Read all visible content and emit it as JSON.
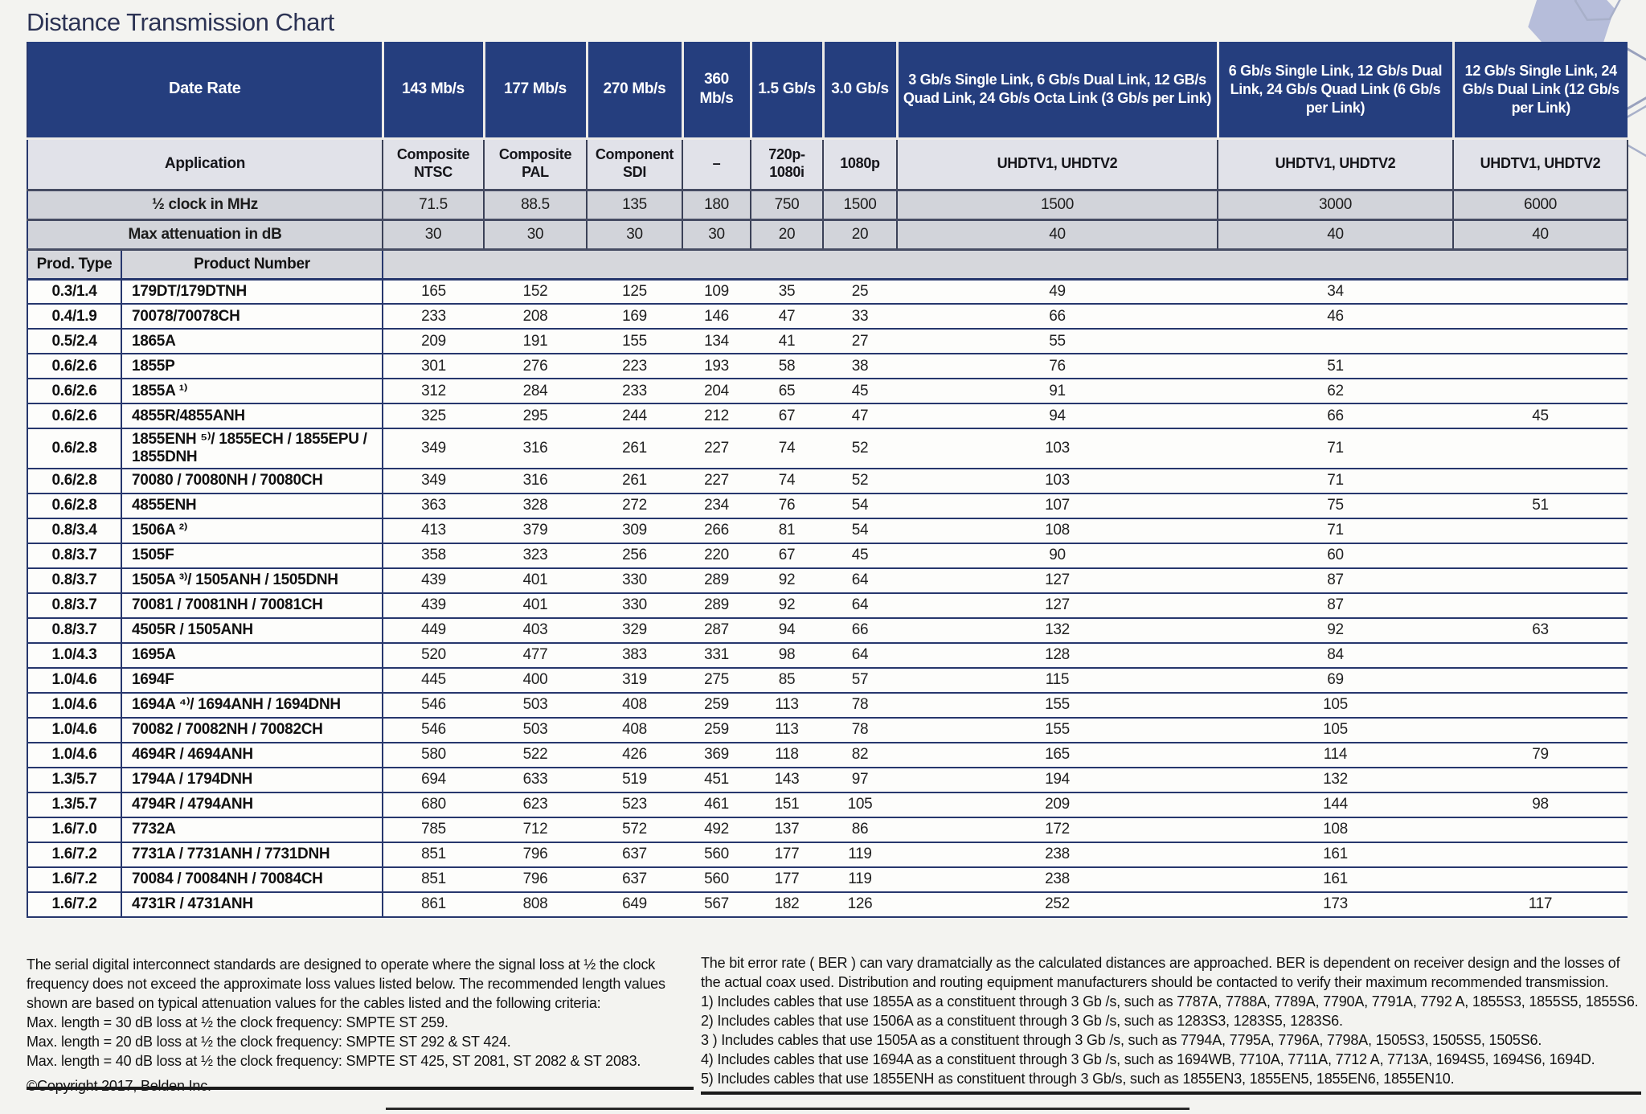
{
  "title": "Distance Transmission Chart",
  "copyright": "©Copyright 2017, Belden Inc.",
  "colors": {
    "header_blue": "#253e7e",
    "light_row": "#d2d4da",
    "hexagon_fill": "#b6bdda"
  },
  "table": {
    "header": {
      "date_rate_label": "Date Rate",
      "application_label": "Application",
      "clock_label": "½ clock in MHz",
      "attenuation_label": "Max attenuation in dB",
      "prod_type_label": "Prod. Type",
      "product_number_label": "Product Number",
      "rate_columns": [
        {
          "rate": "143 Mb/s",
          "application": "Composite NTSC",
          "clock": "71.5",
          "attenuation": "30"
        },
        {
          "rate": "177 Mb/s",
          "application": "Composite PAL",
          "clock": "88.5",
          "attenuation": "30"
        },
        {
          "rate": "270 Mb/s",
          "application": "Component SDI",
          "clock": "135",
          "attenuation": "30"
        },
        {
          "rate": "360 Mb/s",
          "application": "–",
          "clock": "180",
          "attenuation": "30"
        },
        {
          "rate": "1.5 Gb/s",
          "application": "720p-1080i",
          "clock": "750",
          "attenuation": "20"
        },
        {
          "rate": "3.0 Gb/s",
          "application": "1080p",
          "clock": "1500",
          "attenuation": "20"
        },
        {
          "rate": "3 Gb/s Single Link, 6 Gb/s Dual Link, 12 GB/s Quad Link, 24 Gb/s Octa Link (3 Gb/s per Link)",
          "application": "UHDTV1, UHDTV2",
          "clock": "1500",
          "attenuation": "40"
        },
        {
          "rate": "6 Gb/s Single Link, 12 Gb/s Dual Link, 24 Gb/s Quad Link (6 Gb/s per Link)",
          "application": "UHDTV1, UHDTV2",
          "clock": "3000",
          "attenuation": "40"
        },
        {
          "rate": "12 Gb/s Single Link, 24 Gb/s Dual Link (12 Gb/s per Link)",
          "application": "UHDTV1, UHDTV2",
          "clock": "6000",
          "attenuation": "40"
        }
      ]
    },
    "rows": [
      {
        "type": "0.3/1.4",
        "product": "179DT/179DTNH",
        "values": [
          "165",
          "152",
          "125",
          "109",
          "35",
          "25",
          "49",
          "34",
          ""
        ]
      },
      {
        "type": "0.4/1.9",
        "product": "70078/70078CH",
        "values": [
          "233",
          "208",
          "169",
          "146",
          "47",
          "33",
          "66",
          "46",
          ""
        ]
      },
      {
        "type": "0.5/2.4",
        "product": "1865A",
        "values": [
          "209",
          "191",
          "155",
          "134",
          "41",
          "27",
          "55",
          "",
          ""
        ]
      },
      {
        "type": "0.6/2.6",
        "product": "1855P",
        "values": [
          "301",
          "276",
          "223",
          "193",
          "58",
          "38",
          "76",
          "51",
          ""
        ]
      },
      {
        "type": "0.6/2.6",
        "product": "1855A ¹⁾",
        "values": [
          "312",
          "284",
          "233",
          "204",
          "65",
          "45",
          "91",
          "62",
          ""
        ]
      },
      {
        "type": "0.6/2.6",
        "product": "4855R/4855ANH",
        "values": [
          "325",
          "295",
          "244",
          "212",
          "67",
          "47",
          "94",
          "66",
          "45"
        ]
      },
      {
        "type": "0.6/2.8",
        "product": "1855ENH ⁵⁾/ 1855ECH / 1855EPU / 1855DNH",
        "values": [
          "349",
          "316",
          "261",
          "227",
          "74",
          "52",
          "103",
          "71",
          ""
        ]
      },
      {
        "type": "0.6/2.8",
        "product": "70080 / 70080NH / 70080CH",
        "values": [
          "349",
          "316",
          "261",
          "227",
          "74",
          "52",
          "103",
          "71",
          ""
        ]
      },
      {
        "type": "0.6/2.8",
        "product": "4855ENH",
        "values": [
          "363",
          "328",
          "272",
          "234",
          "76",
          "54",
          "107",
          "75",
          "51"
        ]
      },
      {
        "type": "0.8/3.4",
        "product": "1506A ²⁾",
        "values": [
          "413",
          "379",
          "309",
          "266",
          "81",
          "54",
          "108",
          "71",
          ""
        ]
      },
      {
        "type": "0.8/3.7",
        "product": "1505F",
        "values": [
          "358",
          "323",
          "256",
          "220",
          "67",
          "45",
          "90",
          "60",
          ""
        ]
      },
      {
        "type": "0.8/3.7",
        "product": "1505A ³⁾/ 1505ANH / 1505DNH",
        "values": [
          "439",
          "401",
          "330",
          "289",
          "92",
          "64",
          "127",
          "87",
          ""
        ]
      },
      {
        "type": "0.8/3.7",
        "product": "70081 / 70081NH / 70081CH",
        "values": [
          "439",
          "401",
          "330",
          "289",
          "92",
          "64",
          "127",
          "87",
          ""
        ]
      },
      {
        "type": "0.8/3.7",
        "product": "4505R / 1505ANH",
        "values": [
          "449",
          "403",
          "329",
          "287",
          "94",
          "66",
          "132",
          "92",
          "63"
        ]
      },
      {
        "type": "1.0/4.3",
        "product": "1695A",
        "values": [
          "520",
          "477",
          "383",
          "331",
          "98",
          "64",
          "128",
          "84",
          ""
        ]
      },
      {
        "type": "1.0/4.6",
        "product": "1694F",
        "values": [
          "445",
          "400",
          "319",
          "275",
          "85",
          "57",
          "115",
          "69",
          ""
        ]
      },
      {
        "type": "1.0/4.6",
        "product": "1694A ⁴⁾/ 1694ANH / 1694DNH",
        "values": [
          "546",
          "503",
          "408",
          "259",
          "113",
          "78",
          "155",
          "105",
          ""
        ]
      },
      {
        "type": "1.0/4.6",
        "product": "70082 / 70082NH / 70082CH",
        "values": [
          "546",
          "503",
          "408",
          "259",
          "113",
          "78",
          "155",
          "105",
          ""
        ]
      },
      {
        "type": "1.0/4.6",
        "product": "4694R / 4694ANH",
        "values": [
          "580",
          "522",
          "426",
          "369",
          "118",
          "82",
          "165",
          "114",
          "79"
        ]
      },
      {
        "type": "1.3/5.7",
        "product": "1794A / 1794DNH",
        "values": [
          "694",
          "633",
          "519",
          "451",
          "143",
          "97",
          "194",
          "132",
          ""
        ]
      },
      {
        "type": "1.3/5.7",
        "product": "4794R / 4794ANH",
        "values": [
          "680",
          "623",
          "523",
          "461",
          "151",
          "105",
          "209",
          "144",
          "98"
        ]
      },
      {
        "type": "1.6/7.0",
        "product": "7732A",
        "values": [
          "785",
          "712",
          "572",
          "492",
          "137",
          "86",
          "172",
          "108",
          ""
        ]
      },
      {
        "type": "1.6/7.2",
        "product": "7731A / 7731ANH / 7731DNH",
        "values": [
          "851",
          "796",
          "637",
          "560",
          "177",
          "119",
          "238",
          "161",
          ""
        ]
      },
      {
        "type": "1.6/7.2",
        "product": "70084 / 70084NH / 70084CH",
        "values": [
          "851",
          "796",
          "637",
          "560",
          "177",
          "119",
          "238",
          "161",
          ""
        ]
      },
      {
        "type": "1.6/7.2",
        "product": "4731R / 4731ANH",
        "values": [
          "861",
          "808",
          "649",
          "567",
          "182",
          "126",
          "252",
          "173",
          "117"
        ]
      }
    ]
  },
  "footnotes": {
    "left_paragraph": "The serial digital interconnect standards are designed to operate where the signal loss at ½ the clock frequency does not exceed the approximate loss values listed below. The recommended length values shown are based on typical attenuation values for the cables listed and the following criteria:",
    "left_lines": [
      "Max. length = 30 dB loss at ½ the clock frequency: SMPTE ST 259.",
      "Max. length = 20 dB loss at ½ the clock frequency: SMPTE ST 292 & ST 424.",
      "Max. length = 40 dB loss at ½ the clock frequency: SMPTE ST 425, ST 2081, ST 2082 & ST 2083."
    ],
    "right_paragraph": "The bit error rate ( BER ) can vary dramatcially as the calculated distances are approached. BER is dependent on receiver design and the losses of the actual coax used. Distribution and routing equipment manufacturers should be contacted to verify their maximum recommended transmission.",
    "right_lines": [
      "1) Includes cables that use 1855A as a constituent through 3 Gb /s, such as 7787A, 7788A, 7789A, 7790A, 7791A, 7792 A, 1855S3, 1855S5, 1855S6.",
      "2) Includes cables that use 1506A as a constituent through 3 Gb /s, such as 1283S3, 1283S5, 1283S6.",
      "3 ) Includes cables that use 1505A as a constituent through 3 Gb /s, such as 7794A, 7795A, 7796A, 7798A, 1505S3, 1505S5, 1505S6.",
      "4) Includes cables that use 1694A as a constituent through 3 Gb /s, such as 1694WB, 7710A, 7711A, 7712 A, 7713A, 1694S5, 1694S6, 1694D.",
      "5) Includes cables that use 1855ENH as constituent through 3 Gb/s, such as 1855EN3, 1855EN5, 1855EN6, 1855EN10."
    ]
  }
}
